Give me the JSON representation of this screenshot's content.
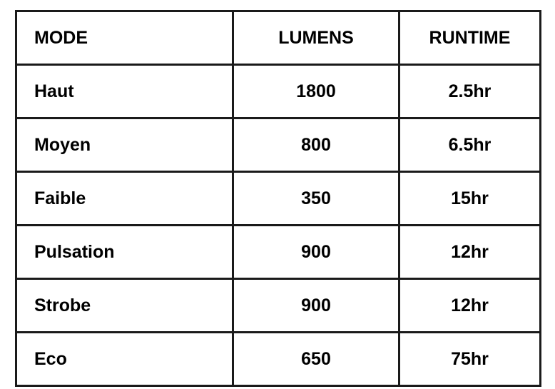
{
  "headers": [
    "MODE",
    "LUMENS",
    "RUNTIME"
  ],
  "rows": [
    [
      "Haut",
      "1800",
      "2.5hr"
    ],
    [
      "Moyen",
      "800",
      "6.5hr"
    ],
    [
      "Faible",
      "350",
      "15hr"
    ],
    [
      "Pulsation",
      "900",
      "12hr"
    ],
    [
      "Strobe",
      "900",
      "12hr"
    ],
    [
      "Eco",
      "650",
      "75hr"
    ]
  ]
}
